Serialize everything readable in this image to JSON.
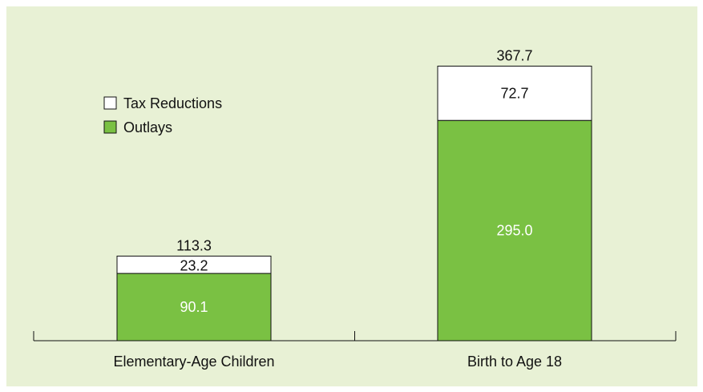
{
  "chart_data": {
    "type": "bar",
    "stacked": true,
    "categories": [
      "Elementary-Age Children",
      "Birth to Age 18"
    ],
    "series": [
      {
        "name": "Outlays",
        "values": [
          90.1,
          295.0
        ],
        "labels": [
          "90.1",
          "295.0"
        ],
        "color": "#7ac143"
      },
      {
        "name": "Tax Reductions",
        "values": [
          23.2,
          72.7
        ],
        "labels": [
          "23.2",
          "72.7"
        ],
        "color": "#ffffff"
      }
    ],
    "totals": [
      113.3,
      367.7
    ],
    "total_labels": [
      "113.3",
      "367.7"
    ],
    "legend": {
      "placement": "top-left",
      "entries": [
        {
          "label": "Tax Reductions",
          "color": "#ffffff"
        },
        {
          "label": "Outlays",
          "color": "#7ac143"
        }
      ]
    },
    "ylim": [
      0,
      400
    ],
    "grid": false,
    "background": "#e8f1d5"
  }
}
